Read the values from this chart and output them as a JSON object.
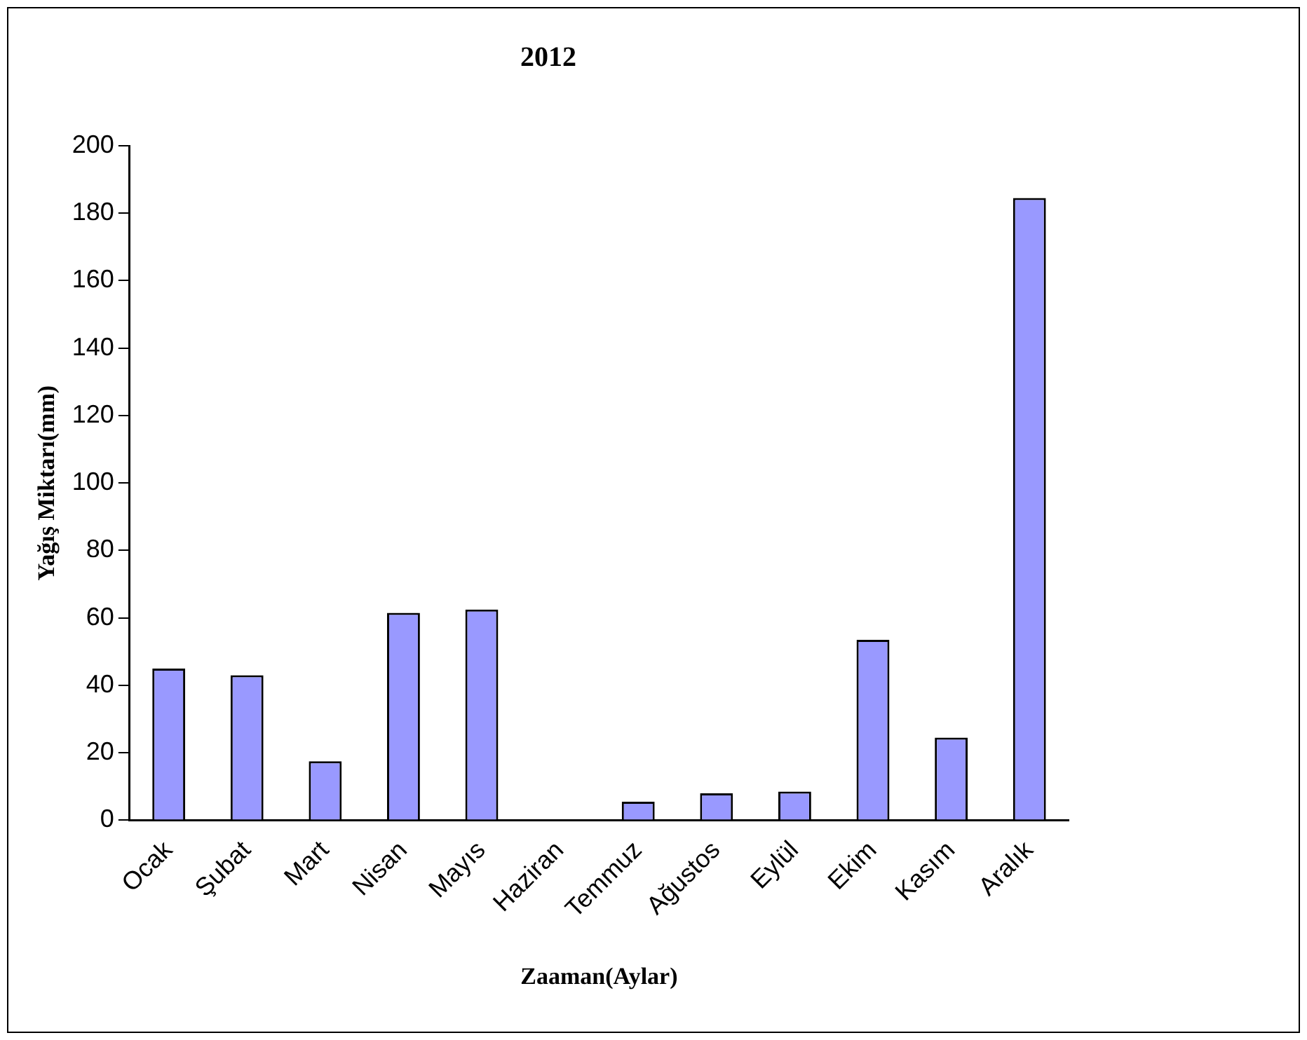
{
  "chart_data": {
    "type": "bar",
    "title": "2012",
    "xlabel": "Zaaman(Aylar)",
    "ylabel": "Yağış Miktarı(mm)",
    "categories": [
      "Ocak",
      "Şubat",
      "Mart",
      "Nisan",
      "Mayıs",
      "Haziran",
      "Temmuz",
      "Ağustos",
      "Eylül",
      "Ekim",
      "Kasım",
      "Aralık"
    ],
    "values": [
      45,
      43,
      17.5,
      61.5,
      62.5,
      0,
      5.5,
      8,
      8.5,
      53.5,
      24.5,
      184.5
    ],
    "color": "#9999ff",
    "ylim": [
      0,
      200
    ],
    "yticks": [
      0,
      20,
      40,
      60,
      80,
      100,
      120,
      140,
      160,
      180,
      200
    ],
    "grid": false,
    "legend": false
  }
}
